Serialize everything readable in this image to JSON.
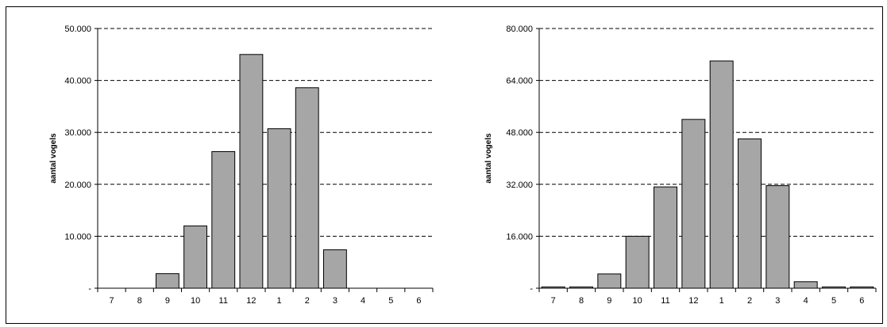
{
  "chart_data": [
    {
      "type": "bar",
      "title": "",
      "xlabel": "",
      "ylabel": "aantal vogels",
      "categories": [
        "7",
        "8",
        "9",
        "10",
        "11",
        "12",
        "1",
        "2",
        "3",
        "4",
        "5",
        "6"
      ],
      "values": [
        0,
        0,
        2800,
        12000,
        26300,
        45000,
        30700,
        38600,
        7400,
        0,
        0,
        0
      ],
      "ylim": [
        0,
        50000
      ],
      "yticks": [
        "-",
        "10.000",
        "20.000",
        "30.000",
        "40.000",
        "50.000"
      ],
      "grid": "dashed horizontal",
      "legend": "none",
      "bar_color": "#a6a6a6"
    },
    {
      "type": "bar",
      "title": "",
      "xlabel": "",
      "ylabel": "aantal vogels",
      "categories": [
        "7",
        "8",
        "9",
        "10",
        "11",
        "12",
        "1",
        "2",
        "3",
        "4",
        "5",
        "6"
      ],
      "values": [
        400,
        400,
        4400,
        16000,
        31200,
        52000,
        70000,
        46000,
        31600,
        2000,
        400,
        400
      ],
      "ylim": [
        0,
        80000
      ],
      "yticks": [
        "-",
        "16.000",
        "32.000",
        "48.000",
        "64.000",
        "80.000"
      ],
      "grid": "dashed horizontal",
      "legend": "none",
      "bar_color": "#a6a6a6"
    }
  ]
}
